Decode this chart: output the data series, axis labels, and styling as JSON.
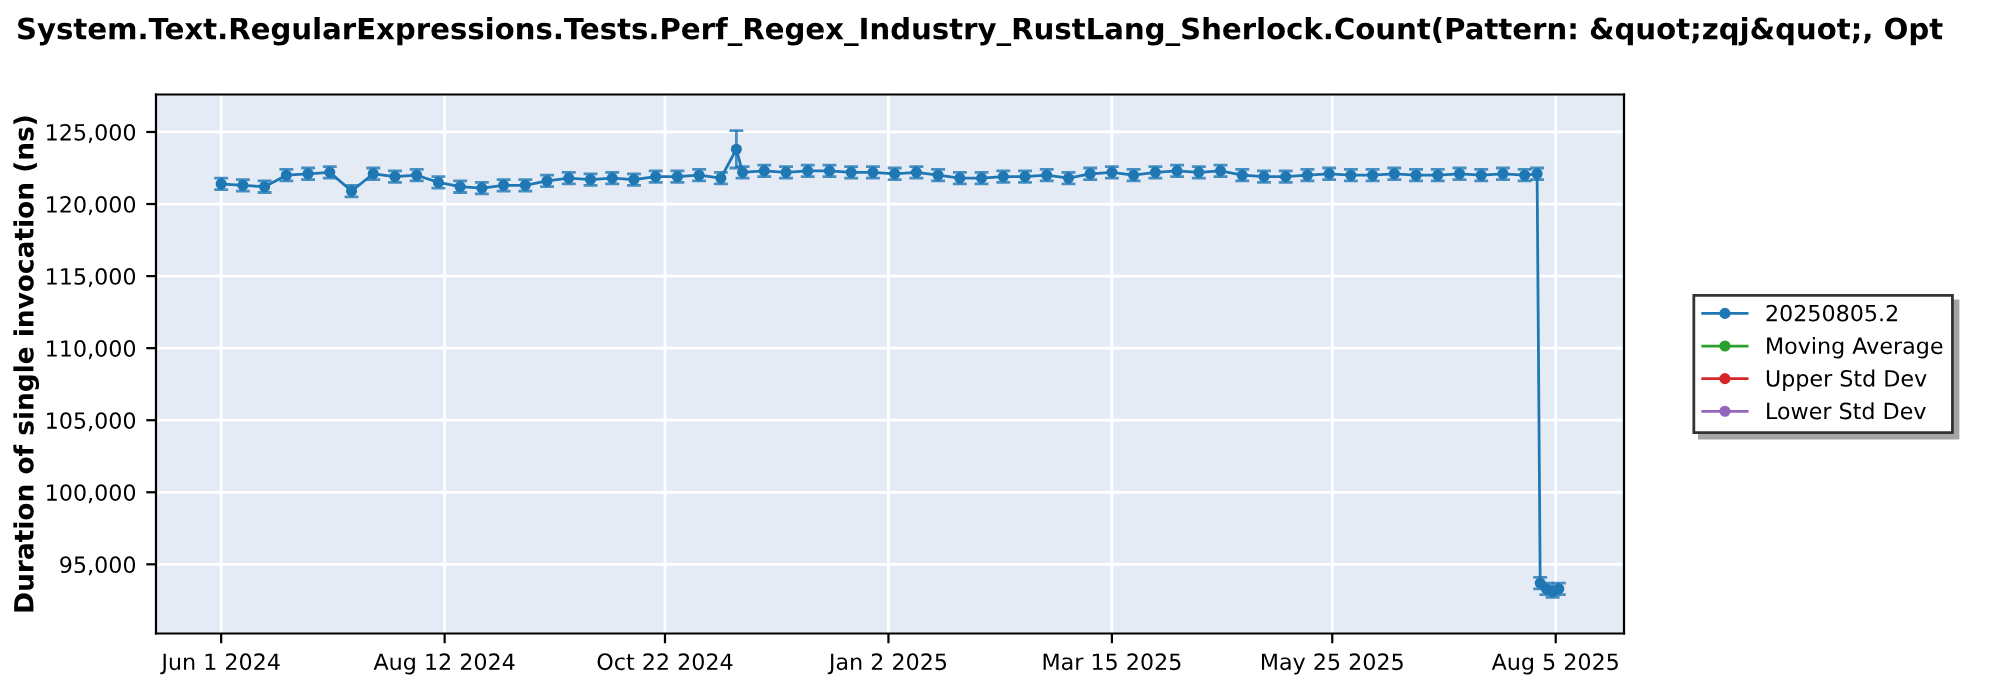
{
  "chart_data": {
    "type": "line",
    "title": "System.Text.RegularExpressions.Tests.Perf_Regex_Industry_RustLang_Sherlock.Count(Pattern: &quot;zqj&quot;, Opt",
    "ylabel": "Duration of single invocation (ns)",
    "xlim": [
      "2024-05-11",
      "2025-08-27"
    ],
    "xticks": [
      {
        "value": "2024-06-01",
        "label": "Jun 1 2024"
      },
      {
        "value": "2024-08-12",
        "label": "Aug 12 2024"
      },
      {
        "value": "2024-10-22",
        "label": "Oct 22 2024"
      },
      {
        "value": "2025-01-02",
        "label": "Jan 2 2025"
      },
      {
        "value": "2025-03-15",
        "label": "Mar 15 2025"
      },
      {
        "value": "2025-05-25",
        "label": "May 25 2025"
      },
      {
        "value": "2025-08-05",
        "label": "Aug 5 2025"
      }
    ],
    "ylim": [
      90200,
      127600
    ],
    "yticks": [
      {
        "value": 95000,
        "label": "95,000"
      },
      {
        "value": 100000,
        "label": "100,000"
      },
      {
        "value": 105000,
        "label": "105,000"
      },
      {
        "value": 110000,
        "label": "110,000"
      },
      {
        "value": 115000,
        "label": "115,000"
      },
      {
        "value": 120000,
        "label": "120,000"
      },
      {
        "value": 125000,
        "label": "125,000"
      }
    ],
    "grid": true,
    "legend": "right",
    "marker": "circle",
    "line_style": "solid",
    "series": [
      {
        "name": "20250805.2",
        "color": "#1f77b4",
        "x": [
          "2024-06-01",
          "2024-06-08",
          "2024-06-15",
          "2024-06-22",
          "2024-06-29",
          "2024-07-06",
          "2024-07-13",
          "2024-07-20",
          "2024-07-27",
          "2024-08-03",
          "2024-08-10",
          "2024-08-17",
          "2024-08-24",
          "2024-08-31",
          "2024-09-07",
          "2024-09-14",
          "2024-09-21",
          "2024-09-28",
          "2024-10-05",
          "2024-10-12",
          "2024-10-19",
          "2024-10-26",
          "2024-11-02",
          "2024-11-09",
          "2024-11-14",
          "2024-11-16",
          "2024-11-23",
          "2024-11-30",
          "2024-12-07",
          "2024-12-14",
          "2024-12-21",
          "2024-12-28",
          "2025-01-04",
          "2025-01-11",
          "2025-01-18",
          "2025-01-25",
          "2025-02-01",
          "2025-02-08",
          "2025-02-15",
          "2025-02-22",
          "2025-03-01",
          "2025-03-08",
          "2025-03-15",
          "2025-03-22",
          "2025-03-29",
          "2025-04-05",
          "2025-04-12",
          "2025-04-19",
          "2025-04-26",
          "2025-05-03",
          "2025-05-10",
          "2025-05-17",
          "2025-05-24",
          "2025-05-31",
          "2025-06-07",
          "2025-06-14",
          "2025-06-21",
          "2025-06-28",
          "2025-07-05",
          "2025-07-12",
          "2025-07-19",
          "2025-07-26",
          "2025-07-30",
          "2025-07-31",
          "2025-08-02",
          "2025-08-04",
          "2025-08-06"
        ],
        "values": [
          121400,
          121300,
          121200,
          122000,
          122100,
          122200,
          120900,
          122100,
          121900,
          122000,
          121500,
          121200,
          121100,
          121300,
          121300,
          121600,
          121800,
          121700,
          121800,
          121700,
          121900,
          121900,
          122000,
          121800,
          123800,
          122200,
          122300,
          122200,
          122300,
          122300,
          122200,
          122200,
          122100,
          122200,
          122000,
          121800,
          121800,
          121900,
          121900,
          122000,
          121800,
          122100,
          122200,
          122000,
          122200,
          122300,
          122200,
          122300,
          122000,
          121900,
          121900,
          122000,
          122100,
          122000,
          122000,
          122100,
          122000,
          122000,
          122100,
          122000,
          122100,
          122000,
          122100,
          93700,
          93300,
          93100,
          93300
        ],
        "errors": [
          400,
          400,
          400,
          400,
          400,
          400,
          400,
          400,
          400,
          400,
          400,
          400,
          400,
          400,
          400,
          400,
          400,
          400,
          400,
          400,
          400,
          400,
          400,
          400,
          1300,
          400,
          400,
          400,
          400,
          400,
          400,
          400,
          400,
          400,
          400,
          400,
          400,
          400,
          400,
          400,
          400,
          400,
          400,
          400,
          400,
          400,
          400,
          400,
          400,
          400,
          400,
          400,
          400,
          400,
          400,
          400,
          400,
          400,
          400,
          400,
          400,
          400,
          400,
          400,
          400,
          400,
          400
        ]
      },
      {
        "name": "Moving Average",
        "color": "#2ca02c"
      },
      {
        "name": "Upper Std Dev",
        "color": "#d62728"
      },
      {
        "name": "Lower Std Dev",
        "color": "#9467bd"
      }
    ]
  }
}
